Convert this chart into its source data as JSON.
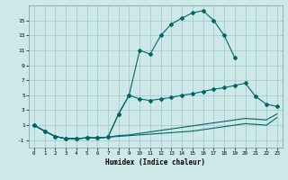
{
  "title": "",
  "xlabel": "Humidex (Indice chaleur)",
  "bg_color": "#cce8e8",
  "grid_color": "#aacccc",
  "line_color": "#006666",
  "xlim": [
    -0.5,
    23.5
  ],
  "ylim": [
    -2.0,
    17.0
  ],
  "xticks": [
    0,
    1,
    2,
    3,
    4,
    5,
    6,
    7,
    8,
    9,
    10,
    11,
    12,
    13,
    14,
    15,
    16,
    17,
    18,
    19,
    20,
    21,
    22,
    23
  ],
  "yticks": [
    -1,
    1,
    3,
    5,
    7,
    9,
    11,
    13,
    15
  ],
  "curve1_x": [
    0,
    1,
    2,
    3,
    4,
    5,
    6,
    7,
    8,
    9,
    10,
    11,
    12,
    13,
    14,
    15,
    16,
    17,
    18,
    19
  ],
  "curve1_y": [
    1.0,
    0.2,
    -0.5,
    -0.8,
    -0.8,
    -0.7,
    -0.7,
    -0.6,
    2.5,
    5.0,
    11.0,
    10.5,
    13.0,
    14.5,
    15.3,
    16.0,
    16.3,
    15.0,
    13.0,
    10.0
  ],
  "curve2_x": [
    0,
    1,
    2,
    3,
    4,
    5,
    6,
    7,
    8,
    9,
    10,
    11,
    12,
    13,
    14,
    15,
    16,
    17,
    18,
    19,
    20,
    21,
    22,
    23
  ],
  "curve2_y": [
    1.0,
    0.2,
    -0.5,
    -0.8,
    -0.8,
    -0.7,
    -0.7,
    -0.6,
    2.5,
    5.0,
    4.5,
    4.3,
    4.5,
    4.7,
    5.0,
    5.2,
    5.5,
    5.8,
    6.0,
    6.3,
    6.6,
    4.8,
    3.8,
    3.5
  ],
  "curve3_x": [
    0,
    1,
    2,
    3,
    4,
    5,
    6,
    7,
    8,
    9,
    10,
    11,
    12,
    13,
    14,
    15,
    16,
    17,
    18,
    19,
    20,
    21,
    22,
    23
  ],
  "curve3_y": [
    1.0,
    0.2,
    -0.5,
    -0.8,
    -0.8,
    -0.7,
    -0.7,
    -0.6,
    -0.4,
    -0.3,
    -0.1,
    0.1,
    0.3,
    0.5,
    0.7,
    0.9,
    1.1,
    1.3,
    1.5,
    1.7,
    1.9,
    1.8,
    1.7,
    2.5
  ],
  "curve4_x": [
    0,
    1,
    2,
    3,
    4,
    5,
    6,
    7,
    8,
    9,
    10,
    11,
    12,
    13,
    14,
    15,
    16,
    17,
    18,
    19,
    20,
    21,
    22,
    23
  ],
  "curve4_y": [
    1.0,
    0.2,
    -0.5,
    -0.8,
    -0.8,
    -0.7,
    -0.7,
    -0.6,
    -0.5,
    -0.4,
    -0.3,
    -0.2,
    -0.1,
    0.0,
    0.1,
    0.2,
    0.4,
    0.6,
    0.8,
    1.0,
    1.2,
    1.1,
    1.0,
    2.0
  ]
}
